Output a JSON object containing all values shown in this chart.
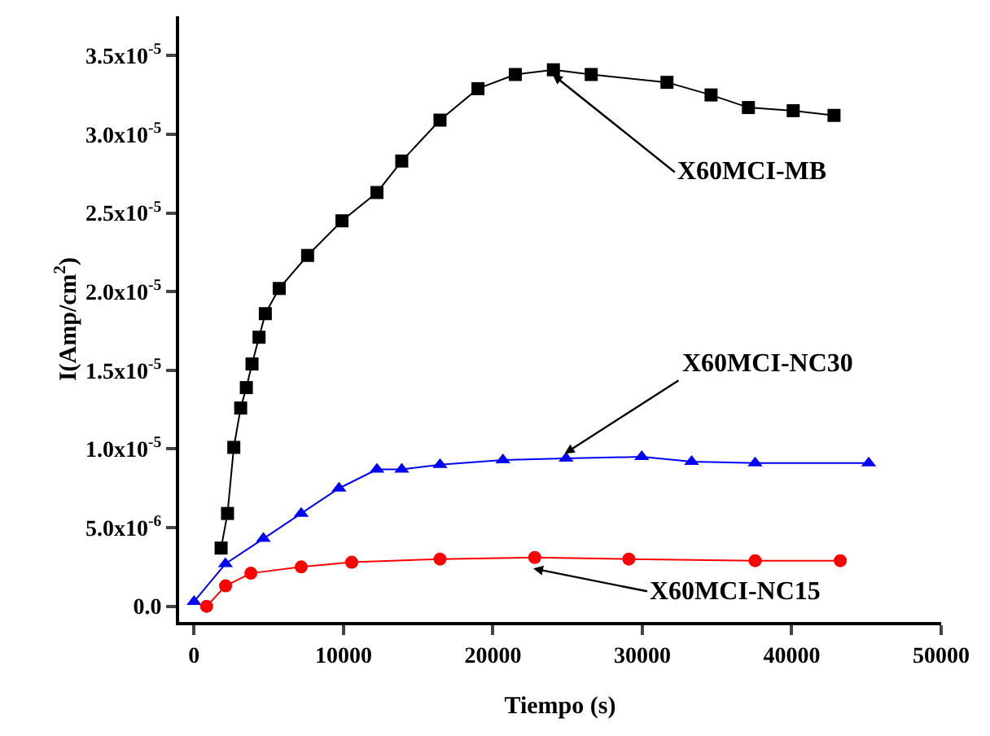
{
  "chart_data": {
    "type": "line",
    "xlabel": "Tiempo (s)",
    "ylabel": "I(Amp/cm$^{2}$)",
    "xlim": [
      -1000,
      50000
    ],
    "xticks": [
      0,
      10000,
      20000,
      30000,
      40000,
      50000
    ],
    "ylim": [
      -1e-06,
      3.75e-05
    ],
    "yticks": [
      {
        "value": 0,
        "label": "0.0"
      },
      {
        "value": 5e-06,
        "label": "5.0x10$^{-6}$"
      },
      {
        "value": 1e-05,
        "label": "1.0x10$^{-5}$"
      },
      {
        "value": 1.5e-05,
        "label": "1.5x10$^{-5}$"
      },
      {
        "value": 2e-05,
        "label": "2.0x10$^{-5}$"
      },
      {
        "value": 2.5e-05,
        "label": "2.5x10$^{-5}$"
      },
      {
        "value": 3e-05,
        "label": "3.0x10$^{-5}$"
      },
      {
        "value": 3.5e-05,
        "label": "3.5x10$^{-5}$"
      }
    ],
    "grid": false,
    "line_style": "solid",
    "series": [
      {
        "color": "#000000",
        "marker": "square",
        "x": [
          1810,
          2240,
          2660,
          3120,
          3500,
          3880,
          4350,
          4770,
          5700,
          7600,
          9900,
          12240,
          13900,
          16460,
          19000,
          21500,
          24050,
          26580,
          31650,
          34600,
          37100,
          40100,
          42830
        ],
        "values": [
          3.7e-06,
          5.9e-06,
          1.01e-05,
          1.26e-05,
          1.39e-05,
          1.54e-05,
          1.71e-05,
          1.86e-05,
          2.02e-05,
          2.23e-05,
          2.45e-05,
          2.63e-05,
          2.83e-05,
          3.09e-05,
          3.29e-05,
          3.38e-05,
          3.41e-05,
          3.38e-05,
          3.33e-05,
          3.25e-05,
          3.17e-05,
          3.15e-05,
          3.12e-05
        ]
      },
      {
        "color": "#0000ff",
        "marker": "triangle",
        "x": [
          0,
          2100,
          4640,
          7170,
          9700,
          12240,
          13900,
          16460,
          20670,
          24900,
          29960,
          33300,
          37550,
          45150
        ],
        "values": [
          3e-07,
          2.7e-06,
          4.3e-06,
          5.9e-06,
          7.5e-06,
          8.7e-06,
          8.7e-06,
          9e-06,
          9.3e-06,
          9.4e-06,
          9.5e-06,
          9.2e-06,
          9.1e-06,
          9.1e-06
        ]
      },
      {
        "color": "#ff0000",
        "marker": "circle",
        "x": [
          840,
          2110,
          3800,
          7170,
          10550,
          16460,
          22800,
          29100,
          37550,
          43250
        ],
        "values": [
          0,
          1.3e-06,
          2.1e-06,
          2.5e-06,
          2.8e-06,
          3e-06,
          3.1e-06,
          3e-06,
          2.9e-06,
          2.9e-06
        ]
      }
    ],
    "annotations": [
      {
        "text": "X60MCI-MB",
        "x": 24000,
        "y": 3.38e-05
      },
      {
        "text": "X60MCI-NC30",
        "x": 24800,
        "y": 9.7e-06
      },
      {
        "text": "X60MCI-NC15",
        "x": 22700,
        "y": 2.4e-06
      }
    ]
  }
}
